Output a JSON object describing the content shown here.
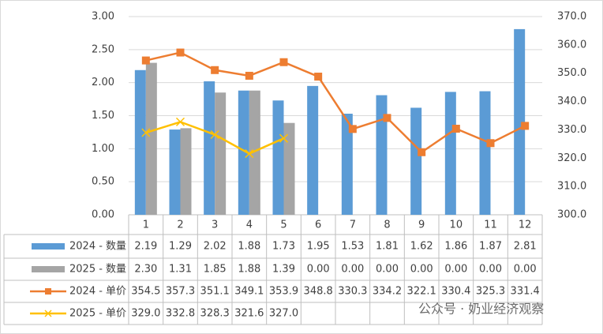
{
  "chart_data": {
    "type": "bar",
    "categories": [
      "1",
      "2",
      "3",
      "4",
      "5",
      "6",
      "7",
      "8",
      "9",
      "10",
      "11",
      "12"
    ],
    "series": [
      {
        "name": "2024 - 数量",
        "type": "bar",
        "color": "#5b9bd5",
        "values": [
          2.19,
          1.29,
          2.02,
          1.88,
          1.73,
          1.95,
          1.53,
          1.81,
          1.62,
          1.86,
          1.87,
          2.81
        ],
        "value_labels": [
          "2.19",
          "1.29",
          "2.02",
          "1.88",
          "1.73",
          "1.95",
          "1.53",
          "1.81",
          "1.62",
          "1.86",
          "1.87",
          "2.81"
        ]
      },
      {
        "name": "2025 - 数量",
        "type": "bar",
        "color": "#a5a5a5",
        "values": [
          2.3,
          1.31,
          1.85,
          1.88,
          1.39,
          0,
          0,
          0,
          0,
          0,
          0,
          0
        ],
        "value_labels": [
          "2.30",
          "1.31",
          "1.85",
          "1.88",
          "1.39",
          "0.00",
          "0.00",
          "0.00",
          "0.00",
          "0.00",
          "0.00",
          "0.00"
        ]
      },
      {
        "name": "2024 - 单价",
        "type": "line",
        "marker": "square",
        "axis": "y2",
        "color": "#ed7d31",
        "values": [
          354.5,
          357.3,
          351.1,
          349.1,
          353.9,
          348.8,
          330.3,
          334.2,
          322.1,
          330.4,
          325.3,
          331.4
        ],
        "value_labels": [
          "354.5",
          "357.3",
          "351.1",
          "349.1",
          "353.9",
          "348.8",
          "330.3",
          "334.2",
          "322.1",
          "330.4",
          "325.3",
          "331.4"
        ]
      },
      {
        "name": "2025 - 单价",
        "type": "line",
        "marker": "x",
        "axis": "y2",
        "color": "#ffc000",
        "values": [
          329.0,
          332.8,
          328.3,
          321.6,
          327.0,
          null,
          null,
          null,
          null,
          null,
          null,
          null
        ],
        "value_labels": [
          "329.0",
          "332.8",
          "328.3",
          "321.6",
          "327.0",
          null,
          null,
          null,
          null,
          null,
          null,
          null
        ]
      }
    ],
    "ylim": [
      0,
      3
    ],
    "yticks": [
      {
        "value": 0,
        "label": "0.00"
      },
      {
        "value": 0.5,
        "label": "0.50"
      },
      {
        "value": 1,
        "label": "1.00"
      },
      {
        "value": 1.5,
        "label": "1.50"
      },
      {
        "value": 2,
        "label": "2.00"
      },
      {
        "value": 2.5,
        "label": "2.50"
      },
      {
        "value": 3,
        "label": "3.00"
      }
    ],
    "y2lim": [
      300,
      370
    ],
    "y2ticks": [
      {
        "value": 300,
        "label": "300.0"
      },
      {
        "value": 310,
        "label": "310.0"
      },
      {
        "value": 320,
        "label": "320.0"
      },
      {
        "value": 330,
        "label": "330.0"
      },
      {
        "value": 340,
        "label": "340.0"
      },
      {
        "value": 350,
        "label": "350.0"
      },
      {
        "value": 360,
        "label": "360.0"
      },
      {
        "value": 370,
        "label": "370.0"
      }
    ],
    "grid": true,
    "watermark": "公众号 · 奶业经济观察"
  }
}
